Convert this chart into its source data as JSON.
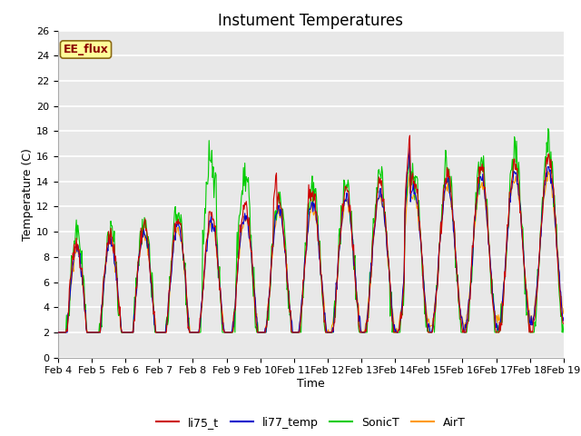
{
  "title": "Instument Temperatures",
  "xlabel": "Time",
  "ylabel": "Temperature (C)",
  "ylim": [
    0,
    26
  ],
  "yticks": [
    0,
    2,
    4,
    6,
    8,
    10,
    12,
    14,
    16,
    18,
    20,
    22,
    24,
    26
  ],
  "xtick_labels": [
    "Feb 4",
    "Feb 5",
    "Feb 6",
    "Feb 7",
    "Feb 8",
    "Feb 9",
    "Feb 10",
    "Feb 11",
    "Feb 12",
    "Feb 13",
    "Feb 14",
    "Feb 15",
    "Feb 16",
    "Feb 17",
    "Feb 18",
    "Feb 19"
  ],
  "plot_bg_color": "#e8e8e8",
  "fig_bg_color": "#ffffff",
  "grid_color": "#ffffff",
  "line_colors": {
    "li75_t": "#cc0000",
    "li77_temp": "#0000cc",
    "SonicT": "#00cc00",
    "AirT": "#ff9900"
  },
  "annotation_box_color": "#ffff99",
  "annotation_border_color": "#8b6914",
  "annotation_text": "EE_flux",
  "annotation_text_color": "#8b0000",
  "legend_entries": [
    "li75_t",
    "li77_temp",
    "SonicT",
    "AirT"
  ],
  "title_fontsize": 12,
  "axis_label_fontsize": 9,
  "tick_fontsize": 8,
  "legend_fontsize": 9,
  "n_days": 15,
  "pts_per_day": 48
}
